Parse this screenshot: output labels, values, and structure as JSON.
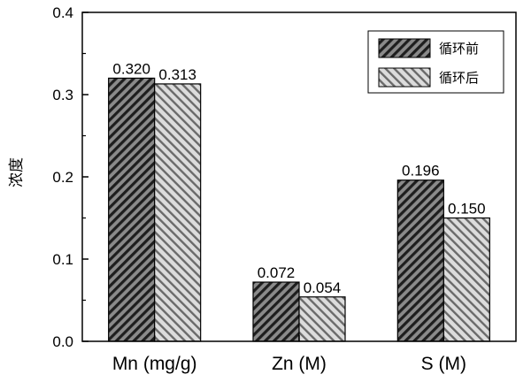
{
  "chart_data": {
    "type": "bar",
    "title": "",
    "xlabel": "",
    "ylabel": "浓度",
    "ylim": [
      0,
      0.4
    ],
    "yticks": [
      "0.0",
      "0.1",
      "0.2",
      "0.3",
      "0.4"
    ],
    "categories": [
      "Mn (mg/g)",
      "Zn (M)",
      "S (M)"
    ],
    "series": [
      {
        "name": "循环前",
        "values": [
          0.32,
          0.072,
          0.196
        ],
        "labels": [
          "0.320",
          "0.072",
          "0.196"
        ],
        "pattern": "dark-diagonal"
      },
      {
        "name": "循环后",
        "values": [
          0.313,
          0.054,
          0.15
        ],
        "labels": [
          "0.313",
          "0.054",
          "0.150"
        ],
        "pattern": "light-diagonal"
      }
    ],
    "legend_position": "top-right",
    "grid": false
  }
}
